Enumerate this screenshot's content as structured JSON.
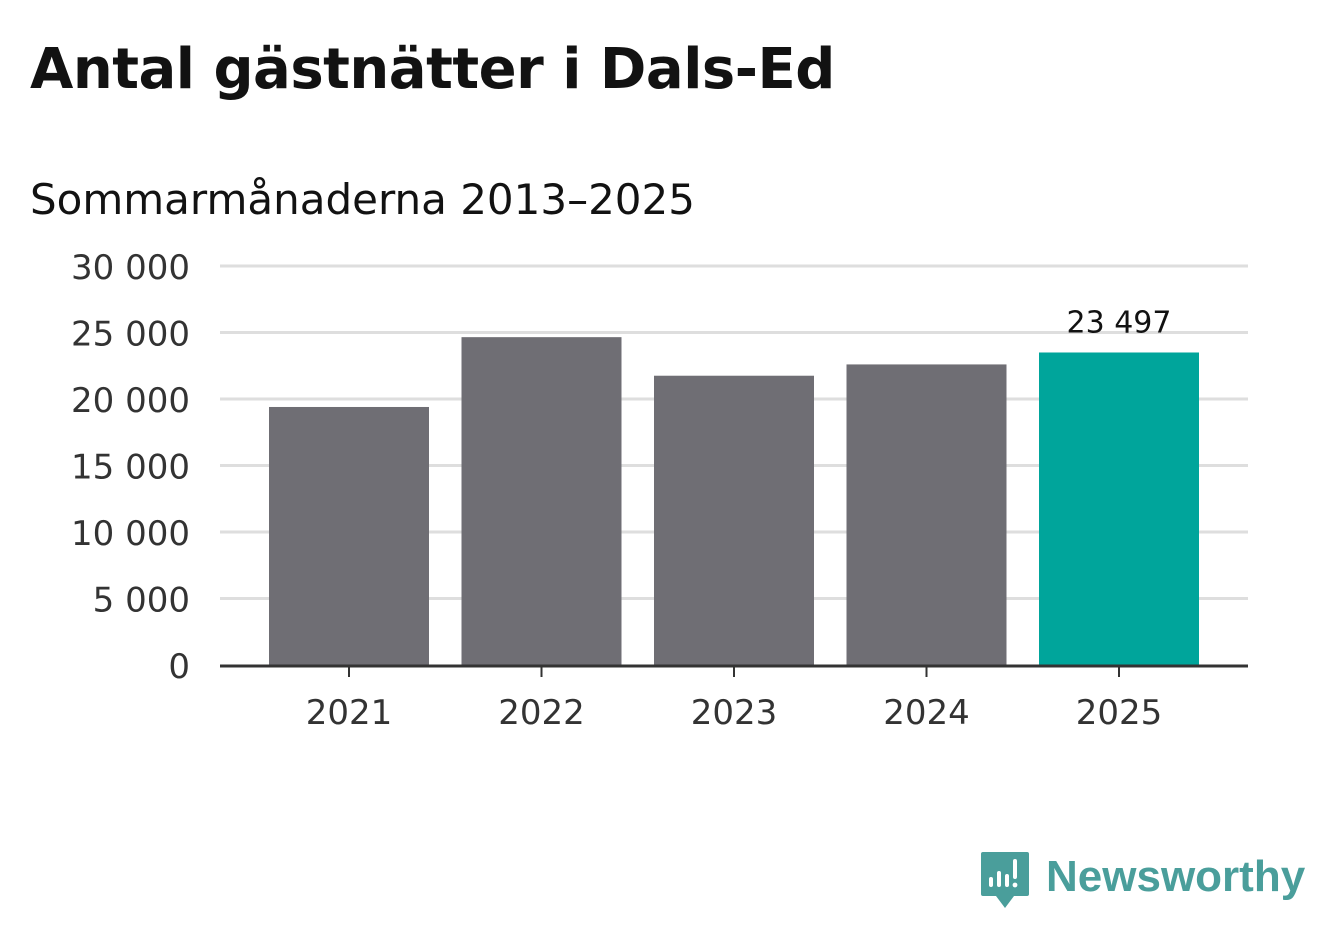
{
  "title": "Antal gästnätter i Dals-Ed",
  "subtitle": "Sommarmånaderna 2013–2025",
  "chart_data": {
    "type": "bar",
    "categories": [
      "2021",
      "2022",
      "2023",
      "2024",
      "2025"
    ],
    "values": [
      19400,
      24650,
      21750,
      22600,
      23497
    ],
    "ylim": [
      0,
      30000
    ],
    "yticks": [
      0,
      5000,
      10000,
      15000,
      20000,
      25000,
      30000
    ],
    "ytick_labels": [
      "0",
      "5 000",
      "10 000",
      "15 000",
      "20 000",
      "25 000",
      "30 000"
    ],
    "data_labels": [
      null,
      null,
      null,
      null,
      "23 497"
    ],
    "bar_colors": [
      "#6f6e74",
      "#6f6e74",
      "#6f6e74",
      "#6f6e74",
      "#00a59b"
    ],
    "grid": true,
    "xlabel": "",
    "ylabel": ""
  },
  "brand": {
    "name": "Newsworthy",
    "icon": "newsworthy-logo-icon",
    "color": "#4a9e9b"
  },
  "colors": {
    "gridline": "#dedede",
    "axis": "#333333",
    "tick_text": "#333333"
  }
}
